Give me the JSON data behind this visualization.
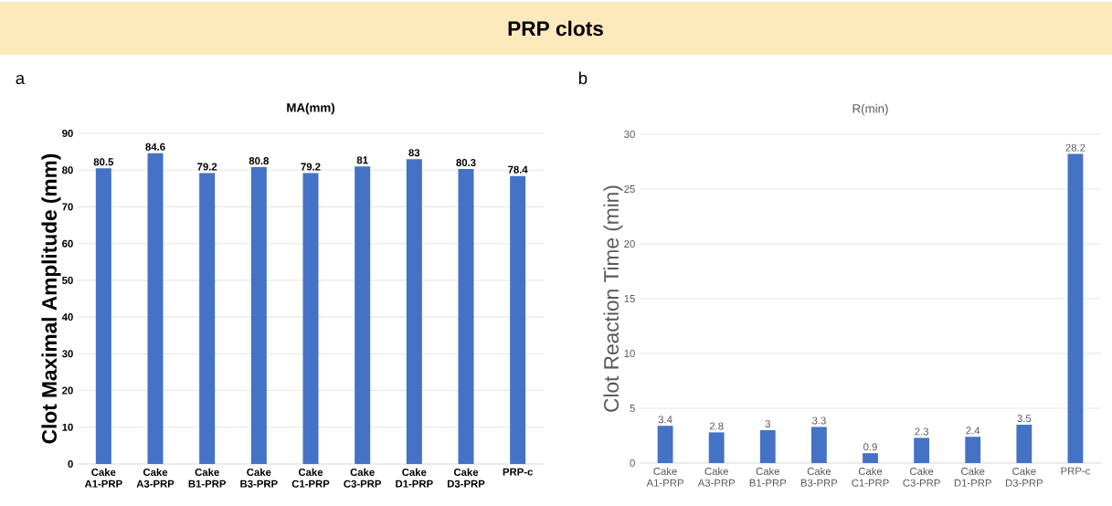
{
  "chart_data": [
    {
      "type": "bar",
      "title": "MA(mm)",
      "ylabel": "Clot Maximal Amplitude (mm)",
      "categories": [
        "Cake A1-PRP",
        "Cake A3-PRP",
        "Cake B1-PRP",
        "Cake B3-PRP",
        "Cake C1-PRP",
        "Cake C3-PRP",
        "Cake D1-PRP",
        "Cake D3-PRP",
        "PRP-c"
      ],
      "values": [
        80.5,
        84.6,
        79.2,
        80.8,
        79.2,
        81,
        83,
        80.3,
        78.4
      ],
      "color": "#4472c4",
      "ylim": [
        0,
        90
      ],
      "yticks": [
        0,
        10,
        20,
        30,
        40,
        50,
        60,
        70,
        80,
        90
      ],
      "grid": "y",
      "data_labels": true,
      "annotations": [
        "PRP clots",
        "a"
      ]
    },
    {
      "type": "bar",
      "title": "R(min)",
      "ylabel": "Clot Reaction Time (min)",
      "categories": [
        "Cake A1-PRP",
        "Cake A3-PRP",
        "Cake B1-PRP",
        "Cake B3-PRP",
        "Cake C1-PRP",
        "Cake C3-PRP",
        "Cake D1-PRP",
        "Cake D3-PRP",
        "PRP-c"
      ],
      "values": [
        3.4,
        2.8,
        3,
        3.3,
        0.9,
        2.3,
        2.4,
        3.5,
        28.2
      ],
      "color": "#4472c4",
      "ylim": [
        0,
        30
      ],
      "yticks": [
        0,
        5,
        10,
        15,
        20,
        25,
        30
      ],
      "grid": "y",
      "data_labels": true,
      "annotations": [
        "b"
      ]
    }
  ]
}
